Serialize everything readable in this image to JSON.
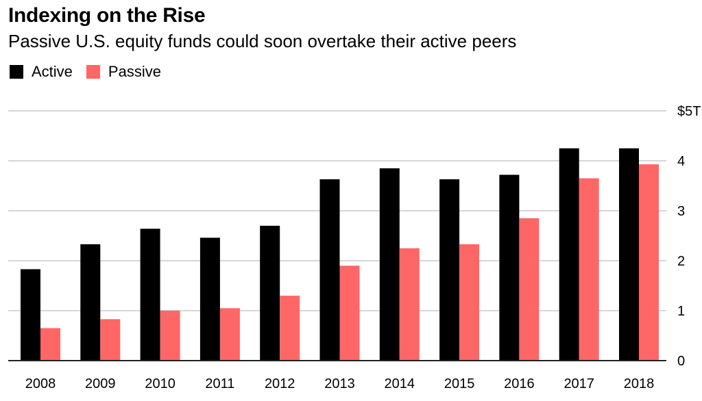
{
  "chart_data": {
    "type": "bar",
    "title": "Indexing on the Rise",
    "subtitle": "Passive U.S. equity funds could soon overtake their active peers",
    "categories": [
      "2008",
      "2009",
      "2010",
      "2011",
      "2012",
      "2013",
      "2014",
      "2015",
      "2016",
      "2017",
      "2018"
    ],
    "series": [
      {
        "name": "Active",
        "color": "#000000",
        "values": [
          1.83,
          2.33,
          2.64,
          2.46,
          2.7,
          3.63,
          3.85,
          3.63,
          3.72,
          4.25,
          4.25
        ]
      },
      {
        "name": "Passive",
        "color": "#ff6666",
        "values": [
          0.65,
          0.83,
          1.0,
          1.05,
          1.3,
          1.9,
          2.25,
          2.33,
          2.85,
          3.65,
          3.93
        ]
      }
    ],
    "ylim": [
      0,
      5
    ],
    "yticks": [
      "0",
      "1",
      "2",
      "3",
      "4",
      "$5T"
    ],
    "xlabel": "",
    "ylabel": "",
    "grid": true,
    "legend_position": "top-left"
  }
}
